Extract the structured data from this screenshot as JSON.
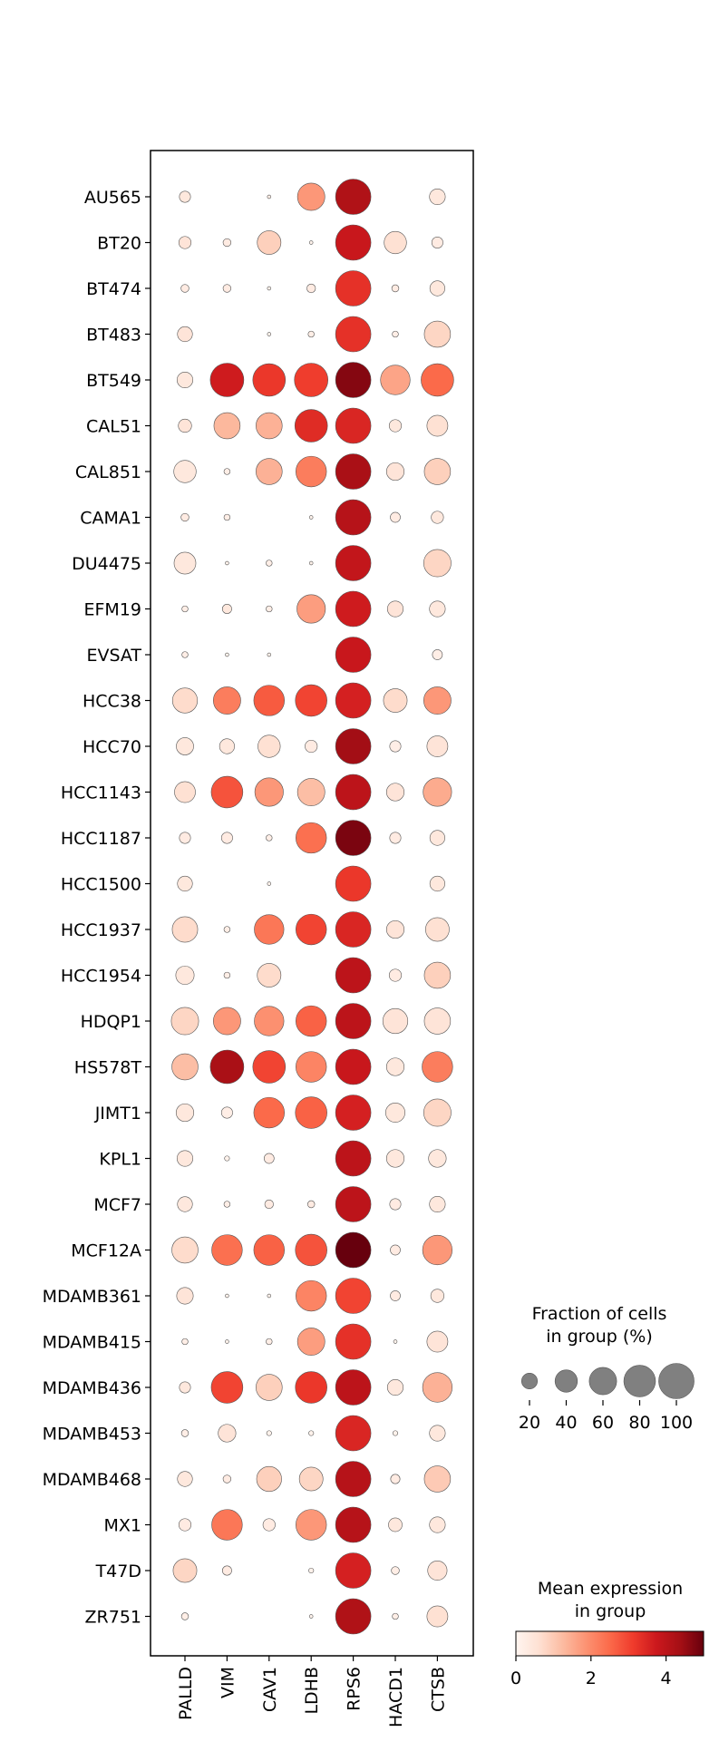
{
  "chart_data": {
    "type": "dotplot",
    "x_categories": [
      "PALLD",
      "VIM",
      "CAV1",
      "LDHB",
      "RPS6",
      "HACD1",
      "CTSB"
    ],
    "y_categories": [
      "AU565",
      "BT20",
      "BT474",
      "BT483",
      "BT549",
      "CAL51",
      "CAL851",
      "CAMA1",
      "DU4475",
      "EFM19",
      "EVSAT",
      "HCC38",
      "HCC70",
      "HCC1143",
      "HCC1187",
      "HCC1500",
      "HCC1937",
      "HCC1954",
      "HDQP1",
      "HS578T",
      "JIMT1",
      "KPL1",
      "MCF7",
      "MCF12A",
      "MDAMB361",
      "MDAMB415",
      "MDAMB436",
      "MDAMB453",
      "MDAMB468",
      "MX1",
      "T47D",
      "ZR751"
    ],
    "fraction_pct": [
      [
        10,
        0,
        1,
        60,
        100,
        0,
        20
      ],
      [
        12,
        5,
        45,
        1,
        100,
        40,
        10
      ],
      [
        5,
        5,
        1,
        6,
        100,
        4,
        18
      ],
      [
        18,
        0,
        1,
        3,
        100,
        3,
        55
      ],
      [
        20,
        90,
        85,
        90,
        100,
        70,
        85
      ],
      [
        14,
        55,
        55,
        85,
        100,
        12,
        35
      ],
      [
        40,
        3,
        55,
        75,
        100,
        25,
        55
      ],
      [
        5,
        3,
        0,
        1,
        100,
        8,
        12
      ],
      [
        38,
        1,
        3,
        1,
        100,
        0,
        60
      ],
      [
        3,
        7,
        3,
        65,
        100,
        20,
        20
      ],
      [
        3,
        1,
        1,
        0,
        100,
        0,
        8
      ],
      [
        50,
        60,
        75,
        80,
        100,
        45,
        60
      ],
      [
        24,
        18,
        40,
        12,
        100,
        10,
        35
      ],
      [
        35,
        80,
        65,
        60,
        100,
        25,
        65
      ],
      [
        10,
        10,
        3,
        75,
        100,
        10,
        18
      ],
      [
        18,
        0,
        1,
        0,
        100,
        0,
        18
      ],
      [
        52,
        3,
        70,
        75,
        100,
        25,
        45
      ],
      [
        27,
        3,
        45,
        0,
        100,
        12,
        55
      ],
      [
        60,
        60,
        70,
        75,
        100,
        50,
        55
      ],
      [
        55,
        90,
        85,
        75,
        100,
        25,
        75
      ],
      [
        25,
        10,
        75,
        80,
        100,
        30,
        60
      ],
      [
        20,
        2,
        8,
        0,
        100,
        25,
        25
      ],
      [
        18,
        3,
        6,
        4,
        100,
        10,
        20
      ],
      [
        55,
        75,
        75,
        80,
        100,
        8,
        70
      ],
      [
        22,
        1,
        1,
        75,
        100,
        8,
        14
      ],
      [
        3,
        1,
        3,
        60,
        100,
        1,
        35
      ],
      [
        10,
        80,
        55,
        80,
        100,
        20,
        70
      ],
      [
        4,
        25,
        2,
        2,
        100,
        2,
        20
      ],
      [
        18,
        5,
        50,
        45,
        100,
        7,
        55
      ],
      [
        12,
        75,
        12,
        75,
        100,
        15,
        20
      ],
      [
        45,
        7,
        0,
        2,
        100,
        5,
        30
      ],
      [
        4,
        0,
        0,
        1,
        100,
        3,
        35
      ]
    ],
    "mean_expression": [
      [
        0.4,
        0,
        0.2,
        1.8,
        4.2,
        0,
        0.4
      ],
      [
        0.5,
        0.3,
        0.9,
        0.1,
        3.8,
        0.6,
        0.3
      ],
      [
        0.3,
        0.3,
        0.1,
        0.3,
        3.3,
        0.3,
        0.4
      ],
      [
        0.5,
        0,
        0.1,
        0.2,
        3.3,
        0.2,
        0.8
      ],
      [
        0.4,
        3.7,
        3.2,
        3.1,
        4.7,
        1.6,
        2.5
      ],
      [
        0.5,
        1.3,
        1.4,
        3.4,
        3.5,
        0.4,
        0.6
      ],
      [
        0.4,
        0.2,
        1.4,
        2.2,
        4.3,
        0.5,
        0.9
      ],
      [
        0.3,
        0.2,
        0,
        0.1,
        4.1,
        0.3,
        0.4
      ],
      [
        0.4,
        0.1,
        0.2,
        0.1,
        3.9,
        0,
        0.8
      ],
      [
        0.2,
        0.4,
        0.2,
        1.7,
        3.7,
        0.5,
        0.4
      ],
      [
        0.2,
        0.1,
        0.1,
        0,
        3.8,
        0,
        0.2
      ],
      [
        0.7,
        2.2,
        2.7,
        3.0,
        3.6,
        0.7,
        1.8
      ],
      [
        0.4,
        0.4,
        0.6,
        0.3,
        4.4,
        0.2,
        0.5
      ],
      [
        0.6,
        2.8,
        1.8,
        1.2,
        4.0,
        0.5,
        1.5
      ],
      [
        0.3,
        0.3,
        0.2,
        2.4,
        4.8,
        0.3,
        0.4
      ],
      [
        0.4,
        0,
        0.1,
        0,
        3.2,
        0,
        0.4
      ],
      [
        0.7,
        0.2,
        2.3,
        3.0,
        3.5,
        0.5,
        0.6
      ],
      [
        0.4,
        0.2,
        0.7,
        0,
        4.0,
        0.3,
        0.9
      ],
      [
        0.8,
        1.8,
        1.9,
        2.6,
        4.0,
        0.5,
        0.5
      ],
      [
        1.2,
        4.3,
        3.0,
        2.1,
        3.8,
        0.4,
        2.2
      ],
      [
        0.4,
        0.2,
        2.5,
        2.6,
        3.6,
        0.4,
        0.8
      ],
      [
        0.4,
        0.1,
        0.3,
        0,
        4.0,
        0.4,
        0.4
      ],
      [
        0.4,
        0.2,
        0.3,
        0.3,
        4.0,
        0.3,
        0.4
      ],
      [
        0.7,
        2.4,
        2.6,
        2.8,
        5.0,
        0.3,
        1.8
      ],
      [
        0.5,
        0.1,
        0.1,
        2.1,
        3.0,
        0.3,
        0.4
      ],
      [
        0.2,
        0.1,
        0.2,
        1.7,
        3.3,
        0.1,
        0.5
      ],
      [
        0.4,
        3.0,
        0.9,
        3.2,
        4.0,
        0.4,
        1.4
      ],
      [
        0.2,
        0.5,
        0.1,
        0.1,
        3.5,
        0.1,
        0.4
      ],
      [
        0.4,
        0.3,
        0.9,
        0.8,
        4.1,
        0.3,
        1.0
      ],
      [
        0.3,
        2.3,
        0.3,
        1.8,
        4.1,
        0.4,
        0.4
      ],
      [
        0.8,
        0.3,
        0,
        0.1,
        3.6,
        0.2,
        0.5
      ],
      [
        0.2,
        0,
        0,
        0.1,
        4.2,
        0.2,
        0.6
      ]
    ],
    "size_legend": {
      "title_line1": "Fraction of cells",
      "title_line2": "in group (%)",
      "values": [
        20,
        40,
        60,
        80,
        100
      ],
      "labels": [
        "20",
        "40",
        "60",
        "80",
        "100"
      ],
      "color": "#808080"
    },
    "color_legend": {
      "title_line1": "Mean expression",
      "title_line2": "in group",
      "colormap": "Reds",
      "range": [
        0,
        5
      ],
      "ticks": [
        0,
        2,
        4
      ],
      "tick_labels": [
        "0",
        "2",
        "4"
      ]
    }
  }
}
